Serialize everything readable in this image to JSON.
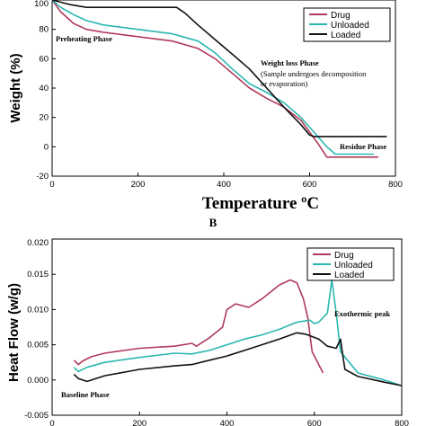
{
  "panel_label": "B",
  "colors": {
    "drug": "#b03a5b",
    "unloaded": "#2ab7b0",
    "loaded": "#111111"
  },
  "chart_data": [
    {
      "type": "line",
      "title": "",
      "xlabel": "Temperature ºC",
      "ylabel": "Weight (%)",
      "xlim": [
        0,
        800
      ],
      "ylim": [
        -20,
        100
      ],
      "xticks": [
        "0",
        "200",
        "400",
        "600",
        "800"
      ],
      "yticks": [
        "-20",
        "0",
        "20",
        "40",
        "60",
        "80",
        "100"
      ],
      "legend": {
        "placement": "top-right",
        "entries": [
          "Drug",
          "Unloaded",
          "Loaded"
        ]
      },
      "annotations": [
        {
          "text": "Preheating Phase",
          "bold": true
        },
        {
          "text": "Weight loss Phase",
          "bold": true
        },
        {
          "text": "(Sample undergoes decomposition",
          "bold": false
        },
        {
          "text": "or evaporation)",
          "bold": false
        },
        {
          "text": "Residue Phase",
          "bold": true
        }
      ],
      "series": [
        {
          "name": "Drug",
          "x": [
            0,
            20,
            50,
            80,
            120,
            200,
            280,
            340,
            380,
            420,
            460,
            500,
            540,
            580,
            620,
            640,
            700,
            760
          ],
          "y": [
            100,
            92,
            84,
            80,
            78,
            75,
            72,
            67,
            60,
            50,
            40,
            33,
            27,
            18,
            2,
            -7,
            -7,
            -7
          ]
        },
        {
          "name": "Unloaded",
          "x": [
            0,
            20,
            50,
            80,
            120,
            200,
            280,
            340,
            380,
            420,
            460,
            500,
            540,
            580,
            610,
            640,
            660,
            700,
            750
          ],
          "y": [
            100,
            95,
            90,
            86,
            83,
            80,
            77,
            72,
            64,
            53,
            43,
            37,
            30,
            20,
            10,
            0,
            -5,
            -5,
            -5
          ]
        },
        {
          "name": "Loaded",
          "x": [
            0,
            40,
            80,
            120,
            200,
            250,
            290,
            310,
            340,
            380,
            420,
            460,
            500,
            540,
            580,
            600,
            610,
            640,
            700,
            780
          ],
          "y": [
            100,
            97,
            95,
            95,
            95,
            95,
            95,
            91,
            83,
            73,
            63,
            53,
            40,
            27,
            15,
            8,
            7,
            7,
            7,
            7
          ]
        }
      ]
    },
    {
      "type": "line",
      "title": "",
      "xlabel": "",
      "ylabel": "Heat Flow (w/g)",
      "xlim": [
        0,
        800
      ],
      "ylim": [
        -0.005,
        0.02
      ],
      "xticks": [
        "0",
        "200",
        "400",
        "600",
        "800"
      ],
      "yticks": [
        "-0.005",
        "0.000",
        "0.005",
        "0.010",
        "0.015",
        "0.020"
      ],
      "legend": {
        "placement": "top-right",
        "entries": [
          "Drug",
          "Unloaded",
          "Loaded"
        ]
      },
      "annotations": [
        {
          "text": "Exothermic peak",
          "bold": true
        },
        {
          "text": "Baseline Phase",
          "bold": true
        }
      ],
      "series": [
        {
          "name": "Drug",
          "x": [
            50,
            60,
            70,
            90,
            120,
            200,
            280,
            320,
            330,
            360,
            390,
            400,
            420,
            450,
            480,
            520,
            545,
            560,
            575,
            585,
            595,
            620
          ],
          "y": [
            0.0028,
            0.0022,
            0.0027,
            0.0033,
            0.0038,
            0.0045,
            0.0048,
            0.0052,
            0.0048,
            0.006,
            0.0075,
            0.01,
            0.0108,
            0.0103,
            0.0115,
            0.0135,
            0.0142,
            0.0138,
            0.0115,
            0.0088,
            0.004,
            0.001
          ]
        },
        {
          "name": "Unloaded",
          "x": [
            50,
            60,
            80,
            120,
            200,
            280,
            320,
            360,
            400,
            440,
            480,
            520,
            560,
            590,
            600,
            610,
            630,
            640,
            650,
            660,
            700,
            760,
            800
          ],
          "y": [
            0.0018,
            0.0012,
            0.0018,
            0.0025,
            0.0032,
            0.0038,
            0.0037,
            0.0042,
            0.005,
            0.0058,
            0.0064,
            0.0072,
            0.0082,
            0.0085,
            0.008,
            0.0082,
            0.0095,
            0.0142,
            0.0095,
            0.004,
            0.001,
            0.0,
            -0.0008
          ]
        },
        {
          "name": "Loaded",
          "x": [
            50,
            60,
            80,
            120,
            200,
            280,
            320,
            360,
            400,
            440,
            480,
            520,
            560,
            580,
            610,
            630,
            650,
            660,
            665,
            670,
            700,
            760,
            800
          ],
          "y": [
            0.0008,
            0.0002,
            -0.0002,
            0.0006,
            0.0015,
            0.002,
            0.0022,
            0.0028,
            0.0034,
            0.0042,
            0.005,
            0.0058,
            0.0067,
            0.0065,
            0.0058,
            0.0048,
            0.0045,
            0.0058,
            0.0035,
            0.0015,
            0.0005,
            -0.0003,
            -0.0008
          ]
        }
      ]
    }
  ]
}
